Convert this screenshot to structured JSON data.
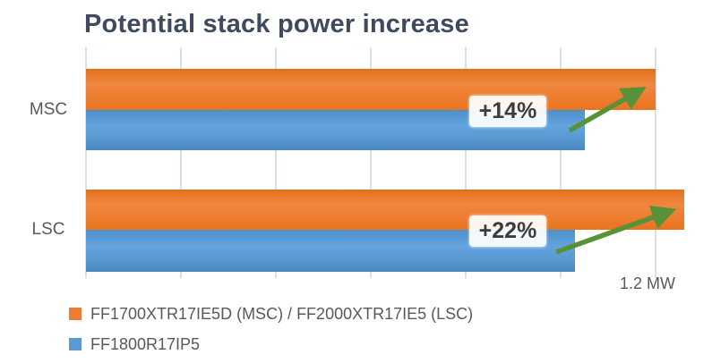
{
  "title": "Potential stack power increase",
  "colors": {
    "orange": "#ED7D31",
    "blue": "#5B9BD5",
    "arrow_green": "#599138",
    "title_text": "#3E4A5E",
    "label_gray": "#595959",
    "gridline": "#D6E2E4",
    "badge_text": "#3D3D3D"
  },
  "chart_data": {
    "type": "bar",
    "orientation": "horizontal",
    "title": "Potential stack power increase",
    "categories": [
      "MSC",
      "LSC"
    ],
    "series": [
      {
        "name": "FF1700XTR17IE5D (MSC) / FF2000XTR17IE5 (LSC)",
        "color_key": "orange",
        "values_mw": [
          1.2,
          1.26
        ]
      },
      {
        "name": "FF1800R17IP5",
        "color_key": "blue",
        "values_mw": [
          1.05,
          1.03
        ]
      }
    ],
    "annotations": [
      {
        "category": "MSC",
        "label": "+14%"
      },
      {
        "category": "LSC",
        "label": "+22%"
      }
    ],
    "x_axis": {
      "unit": "MW",
      "min": 0,
      "max_shown_label": "1.2 MW",
      "gridline_interval_mw": 0.2,
      "gridlines_count": 7
    },
    "grid": true,
    "legend_position": "bottom-left"
  },
  "axis": {
    "max_label": "1.2 MW"
  },
  "legend": [
    {
      "label": "FF1700XTR17IE5D (MSC) / FF2000XTR17IE5 (LSC)",
      "color_key": "orange"
    },
    {
      "label": "FF1800R17IP5",
      "color_key": "blue"
    }
  ]
}
